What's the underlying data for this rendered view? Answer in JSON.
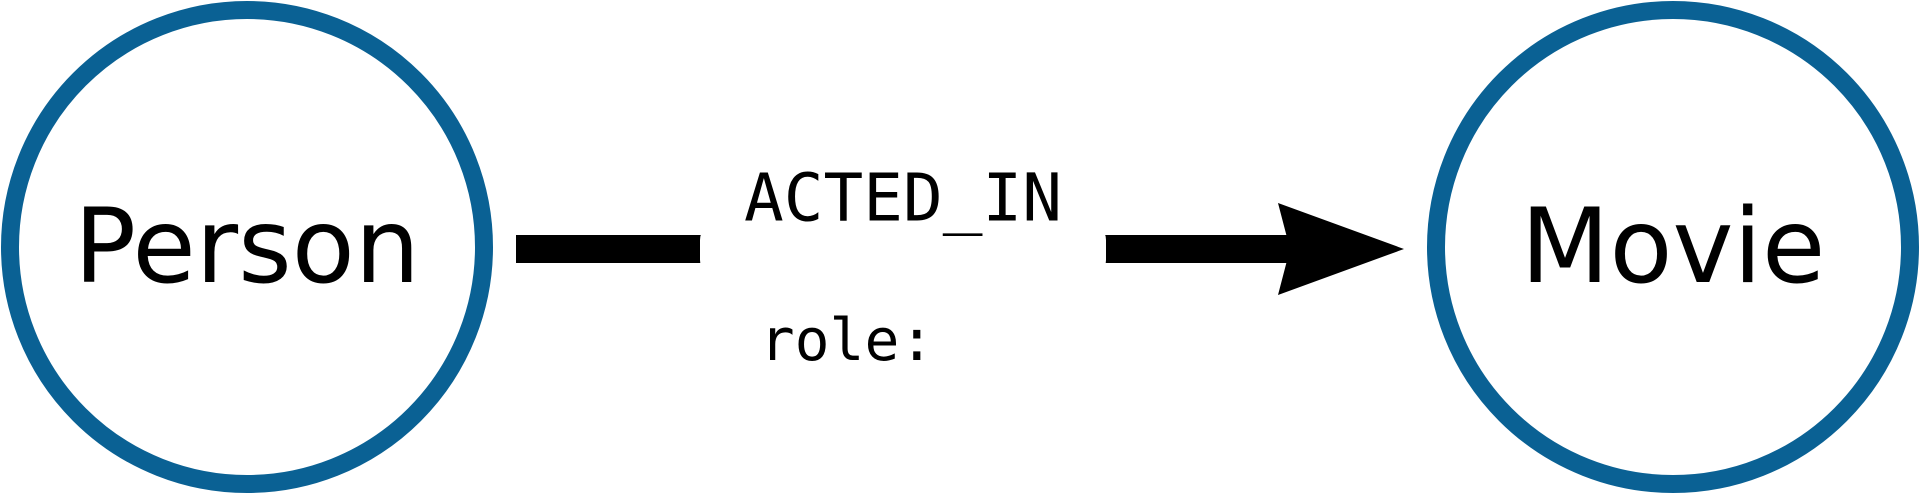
{
  "colors": {
    "node_stroke": "#0a6194",
    "node_fill": "#ffffff",
    "edge": "#000000",
    "text": "#000000"
  },
  "nodes": {
    "person": {
      "label": "Person"
    },
    "movie": {
      "label": "Movie"
    }
  },
  "relationship": {
    "type": "ACTED_IN",
    "property": "role:"
  }
}
